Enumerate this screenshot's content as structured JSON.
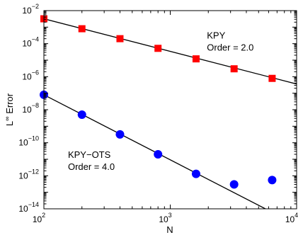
{
  "chart_data": {
    "type": "scatter",
    "xscale": "log",
    "yscale": "log",
    "xlim": [
      100,
      10000
    ],
    "ylim": [
      1e-14,
      0.01
    ],
    "grid": false,
    "xlabel": "N",
    "ylabel_base": "L",
    "ylabel_sup": "∞",
    "ylabel_rest": " Error",
    "x_ticks": [
      {
        "value": 100,
        "base": "10",
        "exp": "2"
      },
      {
        "value": 1000,
        "base": "10",
        "exp": "3"
      },
      {
        "value": 10000,
        "base": "10",
        "exp": "4"
      }
    ],
    "y_ticks": [
      {
        "value": 1e-14,
        "base": "10",
        "exp": "−14"
      },
      {
        "value": 1e-12,
        "base": "10",
        "exp": "−12"
      },
      {
        "value": 1e-10,
        "base": "10",
        "exp": "−10"
      },
      {
        "value": 1e-08,
        "base": "10",
        "exp": "−8"
      },
      {
        "value": 1e-06,
        "base": "10",
        "exp": "−6"
      },
      {
        "value": 0.0001,
        "base": "10",
        "exp": "−4"
      },
      {
        "value": 0.01,
        "base": "10",
        "exp": "−2"
      }
    ],
    "series": [
      {
        "marker": "square",
        "color": "#ff0000",
        "x": [
          100,
          200,
          400,
          800,
          1600,
          3200,
          6400
        ],
        "y": [
          0.0032,
          0.0008,
          0.0002,
          5.2e-05,
          1.2e-05,
          3e-06,
          7.9e-07
        ],
        "fit": {
          "x": [
            100,
            10000
          ],
          "y": [
            0.0032,
            3.6e-07
          ]
        }
      },
      {
        "marker": "circle",
        "color": "#0000ff",
        "x": [
          100,
          200,
          400,
          800,
          1600,
          3200,
          6400
        ],
        "y": [
          8e-08,
          5e-09,
          3.2e-10,
          2e-11,
          1.3e-12,
          3e-13,
          5.5e-13
        ],
        "fit": {
          "x": [
            100,
            5660
          ],
          "y": [
            8e-08,
            1e-14
          ]
        }
      }
    ],
    "annotations": [
      {
        "lines": [
          "KPY",
          "Order = 2.0"
        ],
        "x": 1950,
        "y": 0.0002
      },
      {
        "lines": [
          "KPY−OTS",
          "Order = 4.0"
        ],
        "x": 155,
        "y": 1.2e-11
      }
    ]
  }
}
